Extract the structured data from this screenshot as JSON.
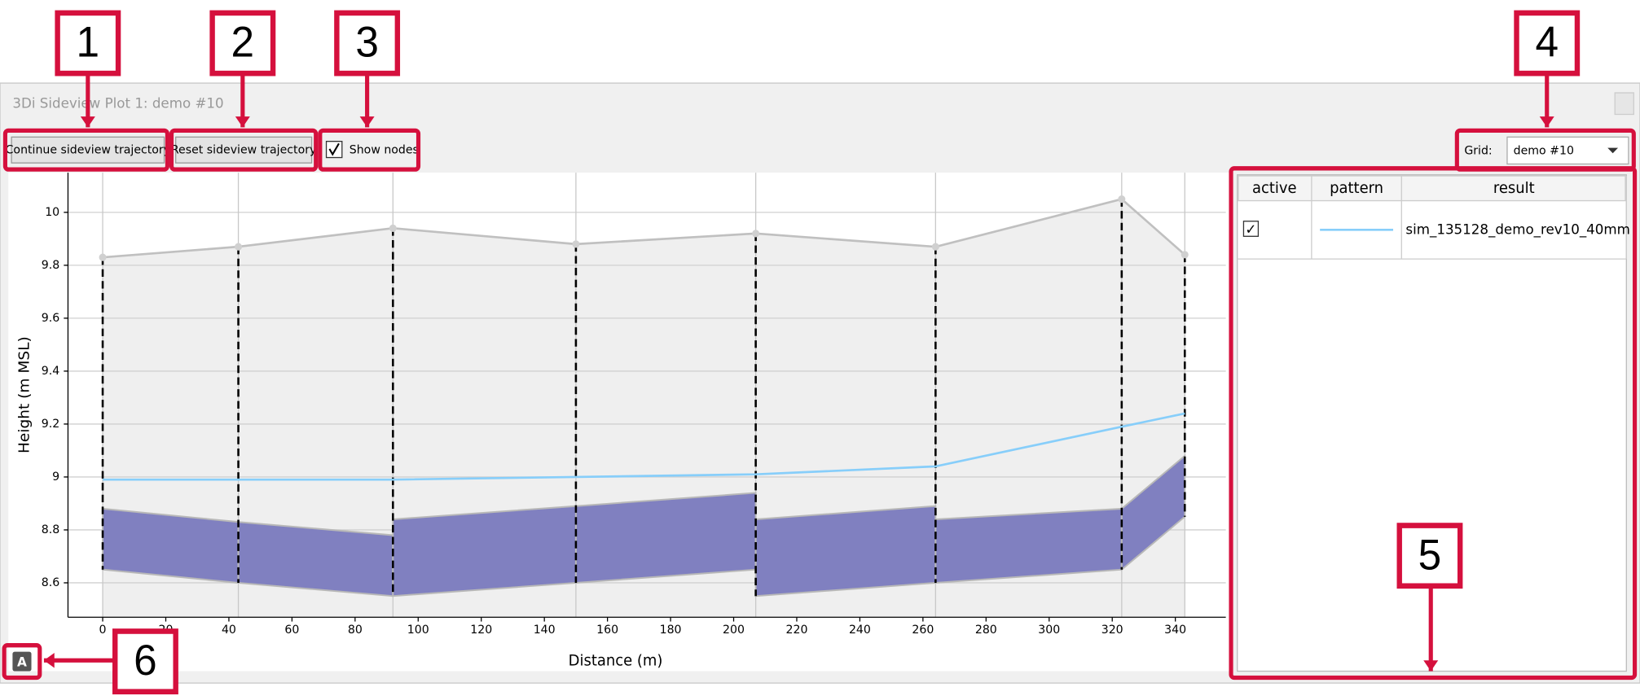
{
  "window": {
    "title": "3Di Sideview Plot 1: demo #10"
  },
  "toolbar": {
    "continue_button": "Continue sideview trajectory",
    "reset_button": "Reset sideview trajectory",
    "show_nodes": "Show nodes",
    "grid_label": "Grid:",
    "grid_value": "demo #10"
  },
  "callouts": [
    "1",
    "2",
    "3",
    "4",
    "5",
    "6"
  ],
  "legend_table": {
    "headers": [
      "active",
      "pattern",
      "result"
    ],
    "rows": [
      [
        "✓",
        "sim_135128_demo_rev10_40mm"
      ]
    ]
  },
  "chart_data": {
    "type": "sideview",
    "x_label": "Distance (m)",
    "y_label": "Height (m MSL)",
    "xlim": [
      -11,
      356
    ],
    "ylim": [
      8.47,
      10.15
    ],
    "xticks": [
      0,
      20,
      40,
      60,
      80,
      100,
      120,
      140,
      160,
      180,
      200,
      220,
      240,
      260,
      280,
      300,
      320,
      340
    ],
    "yticks": [
      8.6,
      8.8,
      9,
      9.2,
      9.4,
      9.6,
      9.8,
      10
    ],
    "grid": true,
    "surface": {
      "color": "#c0c0c0",
      "x": [
        0,
        43,
        92,
        150,
        207,
        264,
        323,
        343
      ],
      "values": [
        9.83,
        9.87,
        9.94,
        9.88,
        9.92,
        9.87,
        10.05,
        9.84
      ]
    },
    "water_level": {
      "color": "#87cefa",
      "x": [
        0,
        43,
        92,
        150,
        207,
        264,
        323,
        343
      ],
      "values": [
        8.99,
        8.99,
        8.99,
        9.0,
        9.01,
        9.04,
        9.19,
        9.24
      ]
    },
    "pipe_color": "#8080c0",
    "pipes": [
      {
        "x": [
          0,
          43
        ],
        "top": [
          8.88,
          8.83
        ],
        "bottom": [
          8.65,
          8.6
        ]
      },
      {
        "x": [
          43,
          92
        ],
        "top": [
          8.83,
          8.78
        ],
        "bottom": [
          8.6,
          8.55
        ]
      },
      {
        "x": [
          92,
          150
        ],
        "top": [
          8.84,
          8.89
        ],
        "bottom": [
          8.55,
          8.6
        ]
      },
      {
        "x": [
          150,
          207
        ],
        "top": [
          8.89,
          8.94
        ],
        "bottom": [
          8.6,
          8.65
        ]
      },
      {
        "x": [
          207,
          264
        ],
        "top": [
          8.84,
          8.89
        ],
        "bottom": [
          8.55,
          8.6
        ]
      },
      {
        "x": [
          264,
          323
        ],
        "top": [
          8.84,
          8.88
        ],
        "bottom": [
          8.6,
          8.65
        ]
      },
      {
        "x": [
          323,
          343
        ],
        "top": [
          8.88,
          9.08
        ],
        "bottom": [
          8.65,
          8.85
        ]
      }
    ]
  }
}
